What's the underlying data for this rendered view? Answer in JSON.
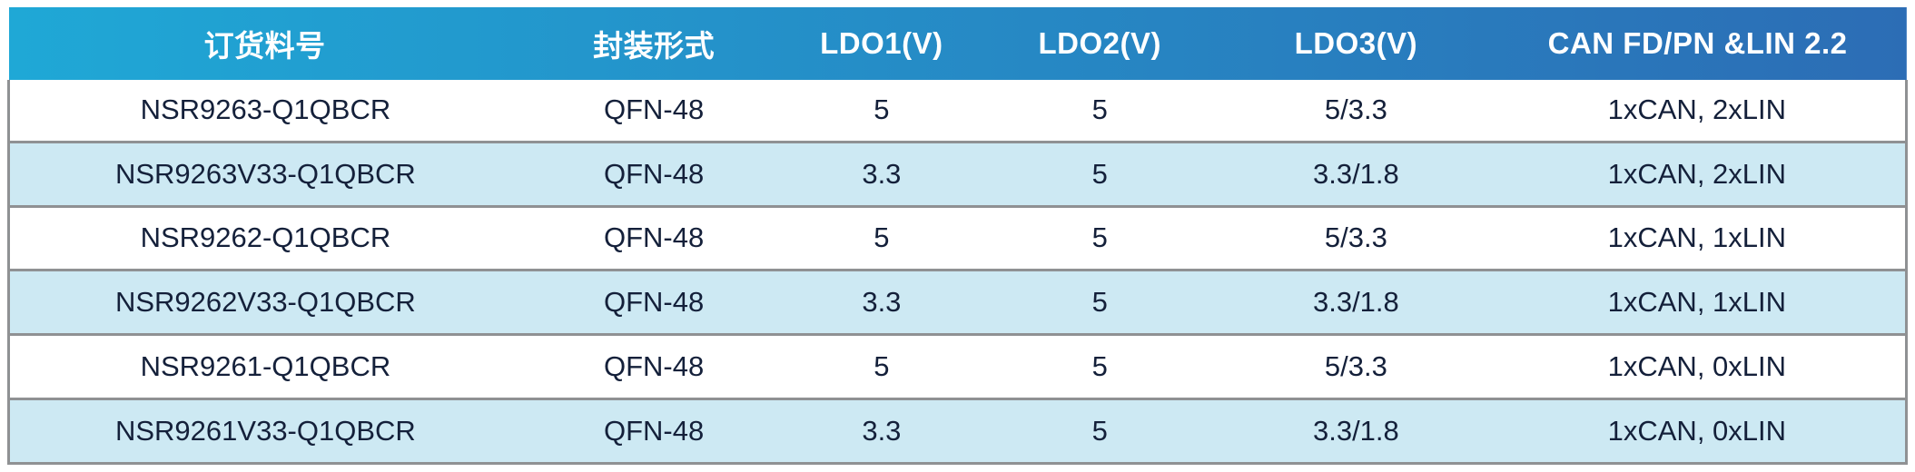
{
  "table": {
    "columns": [
      {
        "label": "订货料号"
      },
      {
        "label": "封装形式"
      },
      {
        "label": "LDO1(V)"
      },
      {
        "label": "LDO2(V)"
      },
      {
        "label": "LDO3(V)"
      },
      {
        "label": "CAN FD/PN &LIN 2.2"
      }
    ],
    "rows": [
      [
        "NSR9263-Q1QBCR",
        "QFN-48",
        "5",
        "5",
        "5/3.3",
        "1xCAN, 2xLIN"
      ],
      [
        "NSR9263V33-Q1QBCR",
        "QFN-48",
        "3.3",
        "5",
        "3.3/1.8",
        "1xCAN, 2xLIN"
      ],
      [
        "NSR9262-Q1QBCR",
        "QFN-48",
        "5",
        "5",
        "5/3.3",
        "1xCAN, 1xLIN"
      ],
      [
        "NSR9262V33-Q1QBCR",
        "QFN-48",
        "3.3",
        "5",
        "3.3/1.8",
        "1xCAN, 1xLIN"
      ],
      [
        "NSR9261-Q1QBCR",
        "QFN-48",
        "5",
        "5",
        "5/3.3",
        "1xCAN, 0xLIN"
      ],
      [
        "NSR9261V33-Q1QBCR",
        "QFN-48",
        "3.3",
        "5",
        "3.3/1.8",
        "1xCAN, 0xLIN"
      ]
    ]
  },
  "colors": {
    "header_gradient_start": "#1FA8D6",
    "header_gradient_end": "#2C6DB5",
    "row_alt": "#CDE9F3",
    "row_default": "#FFFFFF",
    "divider": "#8F9193",
    "body_text": "#14203A",
    "header_text": "#FFFFFF"
  }
}
